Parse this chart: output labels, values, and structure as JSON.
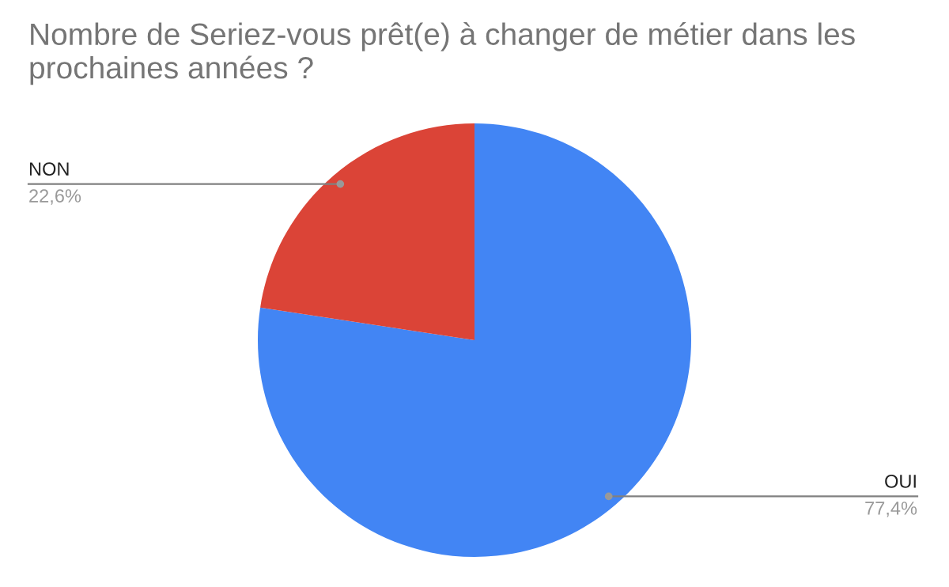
{
  "chart_data": {
    "type": "pie",
    "title": "Nombre de Seriez-vous prêt(e) à changer de métier dans les prochaines années ?",
    "categories": [
      "OUI",
      "NON"
    ],
    "values": [
      77.4,
      22.6
    ],
    "value_labels": [
      "77,4%",
      "22,6%"
    ],
    "colors": [
      "#4285f4",
      "#db4437"
    ],
    "legend": false
  }
}
